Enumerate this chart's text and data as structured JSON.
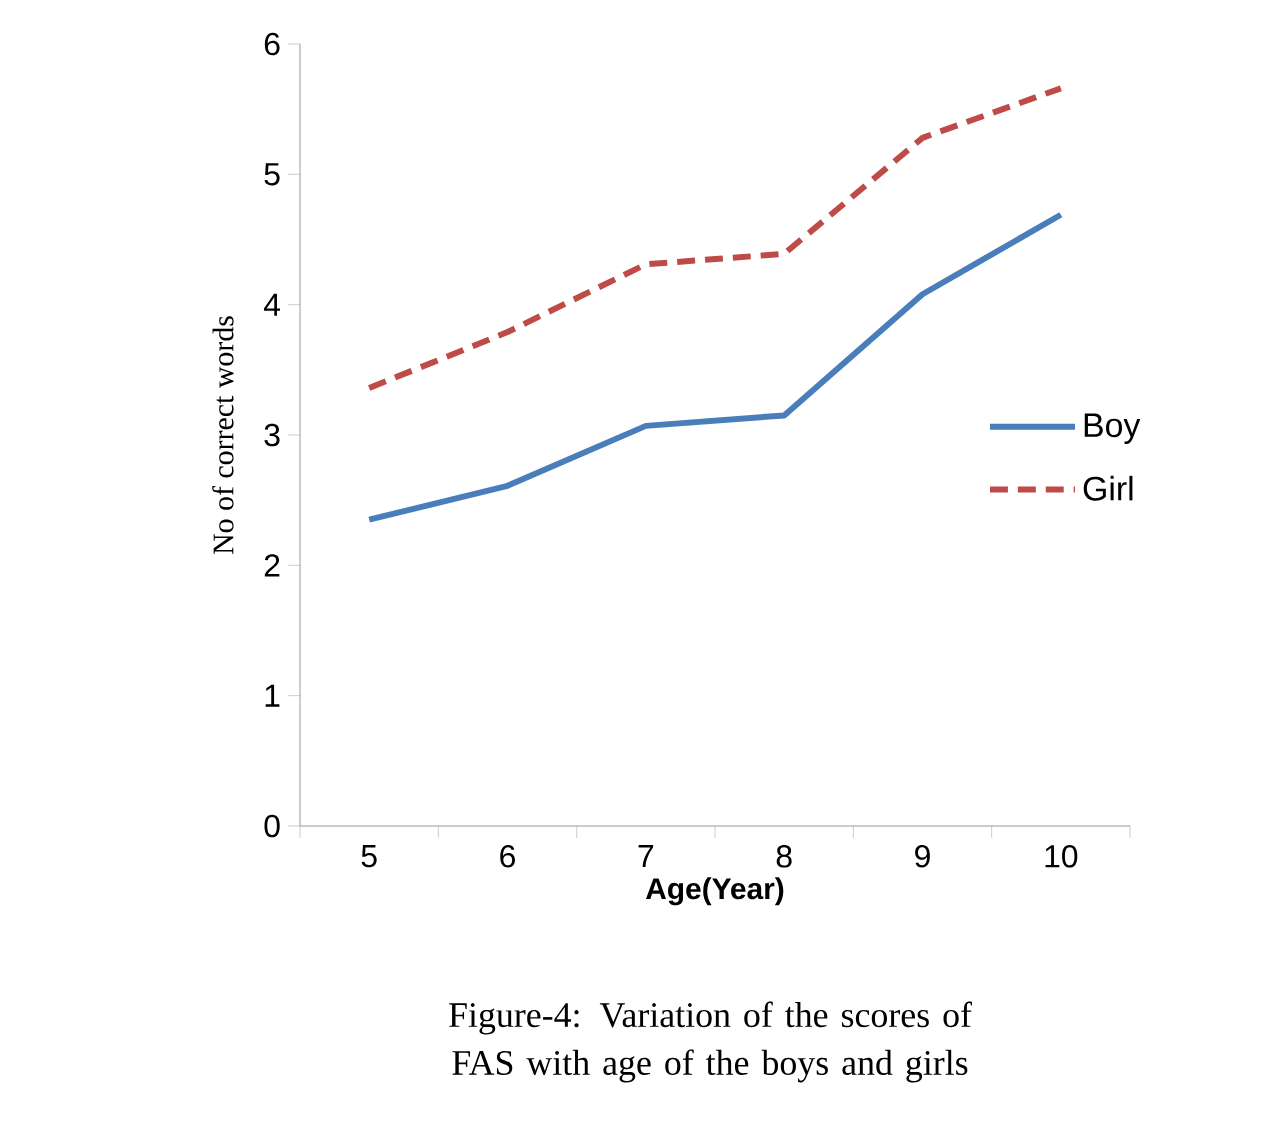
{
  "chart_data": {
    "type": "line",
    "xlabel": "Age(Year)",
    "ylabel": "No of correct words",
    "categories": [
      "5",
      "6",
      "7",
      "8",
      "9",
      "10"
    ],
    "series": [
      {
        "name": "Boy",
        "color": "#4a7ebb",
        "line_style": "solid",
        "values": [
          2.35,
          2.61,
          3.07,
          3.15,
          4.08,
          4.69
        ]
      },
      {
        "name": "Girl",
        "color": "#be4b48",
        "line_style": "dashed",
        "values": [
          3.36,
          3.79,
          4.31,
          4.39,
          5.28,
          5.66
        ]
      }
    ],
    "ylim": [
      0,
      6
    ],
    "yticks": [
      0,
      1,
      2,
      3,
      4,
      5,
      6
    ],
    "grid": false,
    "legend": "right",
    "marker": "none",
    "annotations": [
      "Figure-4: Variation of the scores of  FAS with age of the boys and girls"
    ]
  }
}
